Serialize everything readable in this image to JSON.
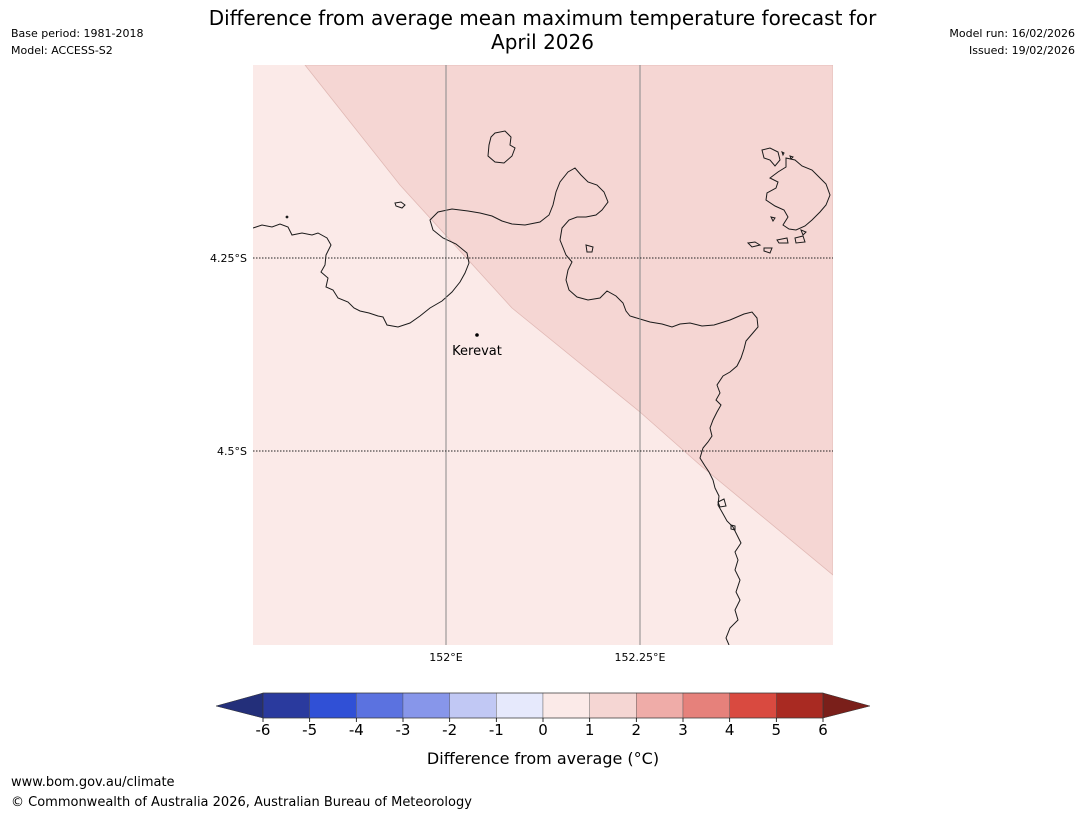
{
  "header": {
    "title_line1": "Difference from average mean maximum temperature forecast for",
    "title_line2": "April 2026",
    "base_period": "Base period: 1981-2018",
    "model": "Model: ACCESS-S2",
    "model_run": "Model run: 16/02/2026",
    "issued": "Issued: 19/02/2026"
  },
  "map": {
    "lat_labels": [
      "4.25°S",
      "4.5°S"
    ],
    "lon_labels": [
      "152°E",
      "152.25°E"
    ],
    "place_name": "Kerevat",
    "zone_colors": {
      "category_0_to_1": "#fbeae8",
      "category_1_to_2": "#f5d6d3"
    }
  },
  "colorbar": {
    "label": "Difference from average (°C)",
    "ticks": [
      "-6",
      "-5",
      "-4",
      "-3",
      "-2",
      "-1",
      "0",
      "1",
      "2",
      "3",
      "4",
      "5",
      "6"
    ],
    "colors": [
      "#2a3a9e",
      "#3050d6",
      "#5b72e0",
      "#8796ea",
      "#c1c8f4",
      "#e6e9fc",
      "#fbeae8",
      "#f5d6d3",
      "#efaca8",
      "#e6817b",
      "#d94a40",
      "#a92a22"
    ],
    "under_color": "#232f7a",
    "over_color": "#7a1f1a"
  },
  "footer": {
    "url": "www.bom.gov.au/climate",
    "copyright": "© Commonwealth of Australia 2026, Australian Bureau of Meteorology"
  }
}
